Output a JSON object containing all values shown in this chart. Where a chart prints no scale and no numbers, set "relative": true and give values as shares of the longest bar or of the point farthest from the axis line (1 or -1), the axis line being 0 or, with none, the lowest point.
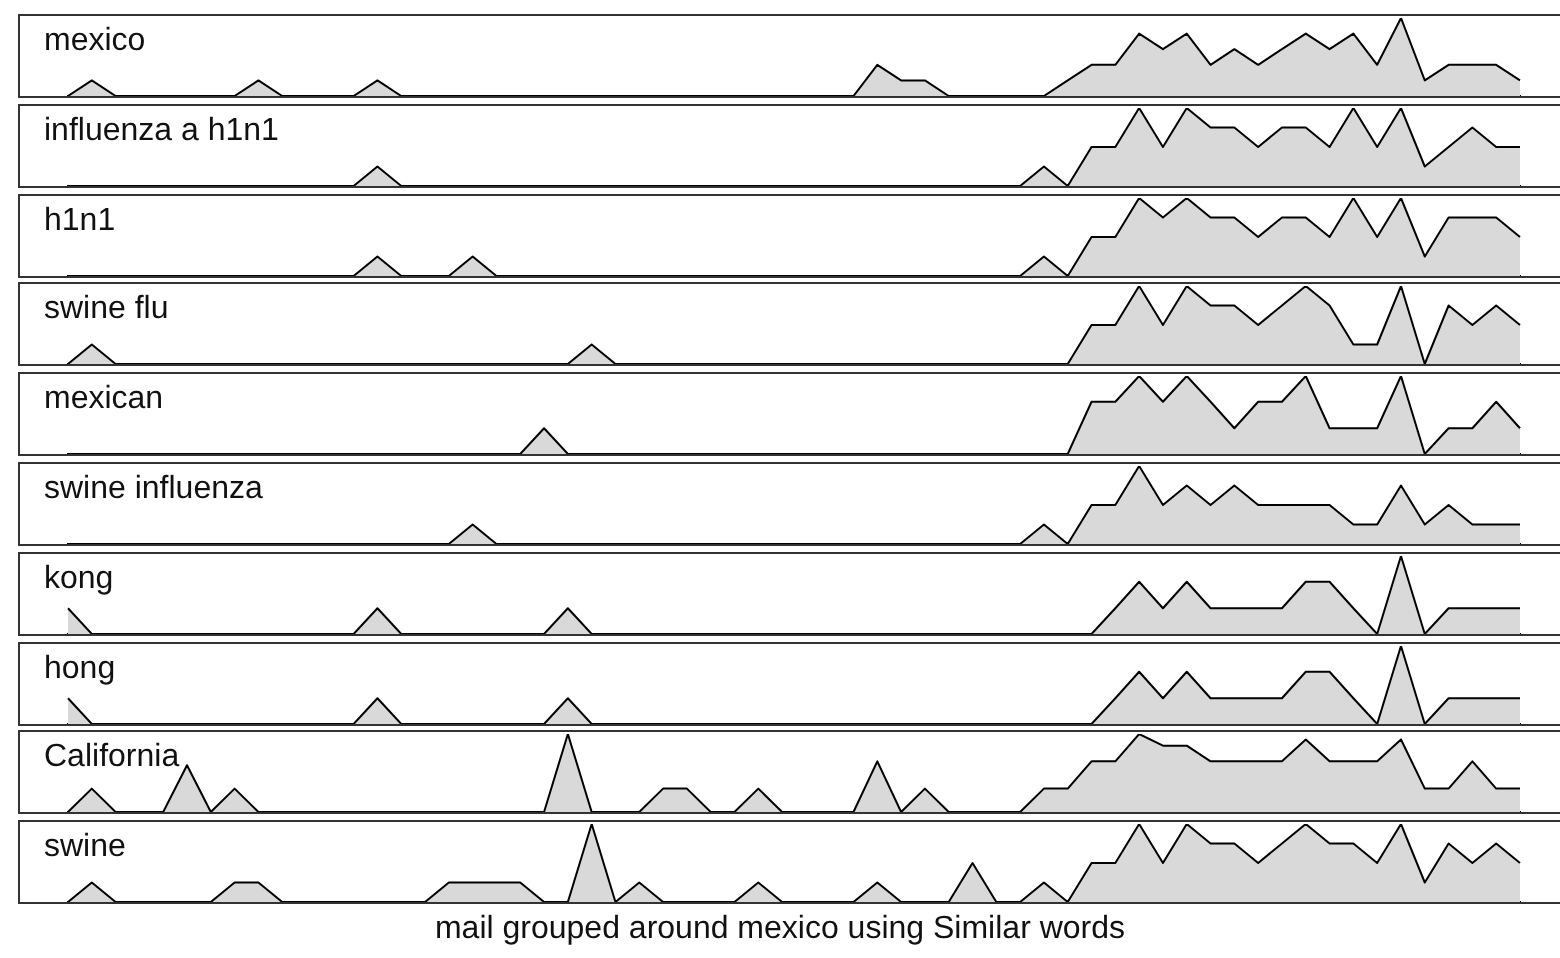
{
  "chart_data": [
    {
      "type": "area",
      "relative": true,
      "categories": [
        null,
        null,
        null,
        null,
        null,
        null,
        null,
        null,
        null,
        null,
        null,
        null,
        null,
        null,
        null,
        null,
        null,
        null,
        null,
        null,
        null,
        null,
        null,
        null,
        null,
        null,
        null,
        null,
        null,
        null,
        null,
        null,
        null,
        null,
        null,
        null,
        null,
        null,
        null,
        null,
        null,
        null,
        null,
        null,
        null,
        null,
        null,
        null,
        null,
        null,
        null,
        null,
        null,
        null,
        null,
        null,
        null,
        null,
        null,
        null,
        null,
        null
      ],
      "series": [
        {
          "name": "mexico",
          "color": "#d9d9d9",
          "values": [
            0,
            0.2,
            0,
            0,
            0,
            0,
            0,
            0,
            0.2,
            0,
            0,
            0,
            0,
            0.2,
            0,
            0,
            0,
            0,
            0,
            0,
            0,
            0,
            0,
            0,
            0,
            0,
            0,
            0,
            0,
            0,
            0,
            0,
            0,
            0,
            0.4,
            0.2,
            0.2,
            0,
            0,
            0,
            0,
            0,
            0.2,
            0.4,
            0.4,
            0.8,
            0.6,
            0.8,
            0.4,
            0.6,
            0.4,
            0.6,
            0.8,
            0.6,
            0.8,
            0.4,
            1,
            0.2,
            0.4,
            0.4,
            0.4,
            0.2
          ]
        }
      ]
    },
    {
      "type": "area",
      "relative": true,
      "categories": [
        null,
        null,
        null,
        null,
        null,
        null,
        null,
        null,
        null,
        null,
        null,
        null,
        null,
        null,
        null,
        null,
        null,
        null,
        null,
        null,
        null,
        null,
        null,
        null,
        null,
        null,
        null,
        null,
        null,
        null,
        null,
        null,
        null,
        null,
        null,
        null,
        null,
        null,
        null,
        null,
        null,
        null,
        null,
        null,
        null,
        null,
        null,
        null,
        null,
        null,
        null,
        null,
        null,
        null,
        null,
        null,
        null,
        null,
        null,
        null,
        null,
        null
      ],
      "series": [
        {
          "name": "influenza a h1n1",
          "color": "#d9d9d9",
          "values": [
            0,
            0,
            0,
            0,
            0,
            0,
            0,
            0,
            0,
            0,
            0,
            0,
            0,
            0.25,
            0,
            0,
            0,
            0,
            0,
            0,
            0,
            0,
            0,
            0,
            0,
            0,
            0,
            0,
            0,
            0,
            0,
            0,
            0,
            0,
            0,
            0,
            0,
            0,
            0,
            0,
            0,
            0.25,
            0,
            0.5,
            0.5,
            1,
            0.5,
            1,
            0.75,
            0.75,
            0.5,
            0.75,
            0.75,
            0.5,
            1,
            0.5,
            1,
            0.25,
            0.5,
            0.75,
            0.5,
            0.5
          ]
        }
      ]
    },
    {
      "type": "area",
      "relative": true,
      "categories": [
        null,
        null,
        null,
        null,
        null,
        null,
        null,
        null,
        null,
        null,
        null,
        null,
        null,
        null,
        null,
        null,
        null,
        null,
        null,
        null,
        null,
        null,
        null,
        null,
        null,
        null,
        null,
        null,
        null,
        null,
        null,
        null,
        null,
        null,
        null,
        null,
        null,
        null,
        null,
        null,
        null,
        null,
        null,
        null,
        null,
        null,
        null,
        null,
        null,
        null,
        null,
        null,
        null,
        null,
        null,
        null,
        null,
        null,
        null,
        null,
        null,
        null
      ],
      "series": [
        {
          "name": "h1n1",
          "color": "#d9d9d9",
          "values": [
            0,
            0,
            0,
            0,
            0,
            0,
            0,
            0,
            0,
            0,
            0,
            0,
            0,
            0.25,
            0,
            0,
            0,
            0.25,
            0,
            0,
            0,
            0,
            0,
            0,
            0,
            0,
            0,
            0,
            0,
            0,
            0,
            0,
            0,
            0,
            0,
            0,
            0,
            0,
            0,
            0,
            0,
            0.25,
            0,
            0.5,
            0.5,
            1,
            0.75,
            1,
            0.75,
            0.75,
            0.5,
            0.75,
            0.75,
            0.5,
            1,
            0.5,
            1,
            0.25,
            0.75,
            0.75,
            0.75,
            0.5
          ]
        }
      ]
    },
    {
      "type": "area",
      "relative": true,
      "categories": [
        null,
        null,
        null,
        null,
        null,
        null,
        null,
        null,
        null,
        null,
        null,
        null,
        null,
        null,
        null,
        null,
        null,
        null,
        null,
        null,
        null,
        null,
        null,
        null,
        null,
        null,
        null,
        null,
        null,
        null,
        null,
        null,
        null,
        null,
        null,
        null,
        null,
        null,
        null,
        null,
        null,
        null,
        null,
        null,
        null,
        null,
        null,
        null,
        null,
        null,
        null,
        null,
        null,
        null,
        null,
        null,
        null,
        null,
        null,
        null,
        null,
        null
      ],
      "series": [
        {
          "name": "swine flu",
          "color": "#d9d9d9",
          "values": [
            0,
            0.25,
            0,
            0,
            0,
            0,
            0,
            0,
            0,
            0,
            0,
            0,
            0,
            0,
            0,
            0,
            0,
            0,
            0,
            0,
            0,
            0,
            0.25,
            0,
            0,
            0,
            0,
            0,
            0,
            0,
            0,
            0,
            0,
            0,
            0,
            0,
            0,
            0,
            0,
            0,
            0,
            0,
            0,
            0.5,
            0.5,
            1,
            0.5,
            1,
            0.75,
            0.75,
            0.5,
            0.75,
            1,
            0.75,
            0.25,
            0.25,
            1,
            0,
            0.75,
            0.5,
            0.75,
            0.5
          ]
        }
      ]
    },
    {
      "type": "area",
      "relative": true,
      "categories": [
        null,
        null,
        null,
        null,
        null,
        null,
        null,
        null,
        null,
        null,
        null,
        null,
        null,
        null,
        null,
        null,
        null,
        null,
        null,
        null,
        null,
        null,
        null,
        null,
        null,
        null,
        null,
        null,
        null,
        null,
        null,
        null,
        null,
        null,
        null,
        null,
        null,
        null,
        null,
        null,
        null,
        null,
        null,
        null,
        null,
        null,
        null,
        null,
        null,
        null,
        null,
        null,
        null,
        null,
        null,
        null,
        null,
        null,
        null,
        null,
        null,
        null
      ],
      "series": [
        {
          "name": "mexican",
          "color": "#d9d9d9",
          "values": [
            0,
            0,
            0,
            0,
            0,
            0,
            0,
            0,
            0,
            0,
            0,
            0,
            0,
            0,
            0,
            0,
            0,
            0,
            0,
            0,
            0.33,
            0,
            0,
            0,
            0,
            0,
            0,
            0,
            0,
            0,
            0,
            0,
            0,
            0,
            0,
            0,
            0,
            0,
            0,
            0,
            0,
            0,
            0,
            0.67,
            0.67,
            1,
            0.67,
            1,
            0.67,
            0.33,
            0.67,
            0.67,
            1,
            0.33,
            0.33,
            0.33,
            1,
            0,
            0.33,
            0.33,
            0.67,
            0.33
          ]
        }
      ]
    },
    {
      "type": "area",
      "relative": true,
      "categories": [
        null,
        null,
        null,
        null,
        null,
        null,
        null,
        null,
        null,
        null,
        null,
        null,
        null,
        null,
        null,
        null,
        null,
        null,
        null,
        null,
        null,
        null,
        null,
        null,
        null,
        null,
        null,
        null,
        null,
        null,
        null,
        null,
        null,
        null,
        null,
        null,
        null,
        null,
        null,
        null,
        null,
        null,
        null,
        null,
        null,
        null,
        null,
        null,
        null,
        null,
        null,
        null,
        null,
        null,
        null,
        null,
        null,
        null,
        null,
        null,
        null,
        null
      ],
      "series": [
        {
          "name": "swine influenza",
          "color": "#d9d9d9",
          "values": [
            0,
            0,
            0,
            0,
            0,
            0,
            0,
            0,
            0,
            0,
            0,
            0,
            0,
            0,
            0,
            0,
            0,
            0.25,
            0,
            0,
            0,
            0,
            0,
            0,
            0,
            0,
            0,
            0,
            0,
            0,
            0,
            0,
            0,
            0,
            0,
            0,
            0,
            0,
            0,
            0,
            0,
            0.25,
            0,
            0.5,
            0.5,
            1,
            0.5,
            0.75,
            0.5,
            0.75,
            0.5,
            0.5,
            0.5,
            0.5,
            0.25,
            0.25,
            0.75,
            0.25,
            0.5,
            0.25,
            0.25,
            0.25
          ]
        }
      ]
    },
    {
      "type": "area",
      "relative": true,
      "categories": [
        null,
        null,
        null,
        null,
        null,
        null,
        null,
        null,
        null,
        null,
        null,
        null,
        null,
        null,
        null,
        null,
        null,
        null,
        null,
        null,
        null,
        null,
        null,
        null,
        null,
        null,
        null,
        null,
        null,
        null,
        null,
        null,
        null,
        null,
        null,
        null,
        null,
        null,
        null,
        null,
        null,
        null,
        null,
        null,
        null,
        null,
        null,
        null,
        null,
        null,
        null,
        null,
        null,
        null,
        null,
        null,
        null,
        null,
        null,
        null,
        null,
        null
      ],
      "series": [
        {
          "name": "kong",
          "color": "#d9d9d9",
          "values": [
            0.33,
            0,
            0,
            0,
            0,
            0,
            0,
            0,
            0,
            0,
            0,
            0,
            0,
            0.33,
            0,
            0,
            0,
            0,
            0,
            0,
            0,
            0.33,
            0,
            0,
            0,
            0,
            0,
            0,
            0,
            0,
            0,
            0,
            0,
            0,
            0,
            0,
            0,
            0,
            0,
            0,
            0,
            0,
            0,
            0,
            0.33,
            0.67,
            0.33,
            0.67,
            0.33,
            0.33,
            0.33,
            0.33,
            0.67,
            0.67,
            0.33,
            0,
            1,
            0,
            0.33,
            0.33,
            0.33,
            0.33
          ]
        }
      ]
    },
    {
      "type": "area",
      "relative": true,
      "categories": [
        null,
        null,
        null,
        null,
        null,
        null,
        null,
        null,
        null,
        null,
        null,
        null,
        null,
        null,
        null,
        null,
        null,
        null,
        null,
        null,
        null,
        null,
        null,
        null,
        null,
        null,
        null,
        null,
        null,
        null,
        null,
        null,
        null,
        null,
        null,
        null,
        null,
        null,
        null,
        null,
        null,
        null,
        null,
        null,
        null,
        null,
        null,
        null,
        null,
        null,
        null,
        null,
        null,
        null,
        null,
        null,
        null,
        null,
        null,
        null,
        null,
        null
      ],
      "series": [
        {
          "name": "hong",
          "color": "#d9d9d9",
          "values": [
            0.33,
            0,
            0,
            0,
            0,
            0,
            0,
            0,
            0,
            0,
            0,
            0,
            0,
            0.33,
            0,
            0,
            0,
            0,
            0,
            0,
            0,
            0.33,
            0,
            0,
            0,
            0,
            0,
            0,
            0,
            0,
            0,
            0,
            0,
            0,
            0,
            0,
            0,
            0,
            0,
            0,
            0,
            0,
            0,
            0,
            0.33,
            0.67,
            0.33,
            0.67,
            0.33,
            0.33,
            0.33,
            0.33,
            0.67,
            0.67,
            0.33,
            0,
            1,
            0,
            0.33,
            0.33,
            0.33,
            0.33
          ]
        }
      ]
    },
    {
      "type": "area",
      "relative": true,
      "categories": [
        null,
        null,
        null,
        null,
        null,
        null,
        null,
        null,
        null,
        null,
        null,
        null,
        null,
        null,
        null,
        null,
        null,
        null,
        null,
        null,
        null,
        null,
        null,
        null,
        null,
        null,
        null,
        null,
        null,
        null,
        null,
        null,
        null,
        null,
        null,
        null,
        null,
        null,
        null,
        null,
        null,
        null,
        null,
        null,
        null,
        null,
        null,
        null,
        null,
        null,
        null,
        null,
        null,
        null,
        null,
        null,
        null,
        null,
        null,
        null,
        null,
        null
      ],
      "series": [
        {
          "name": "California",
          "color": "#d9d9d9",
          "values": [
            0,
            0.3,
            0,
            0,
            0,
            0.6,
            0,
            0.3,
            0,
            0,
            0,
            0,
            0,
            0,
            0,
            0,
            0,
            0,
            0,
            0,
            0,
            1,
            0,
            0,
            0,
            0.3,
            0.3,
            0,
            0,
            0.3,
            0,
            0,
            0,
            0,
            0.65,
            0,
            0.3,
            0,
            0,
            0,
            0,
            0.3,
            0.3,
            0.65,
            0.65,
            1,
            0.85,
            0.85,
            0.65,
            0.65,
            0.65,
            0.65,
            0.93,
            0.65,
            0.65,
            0.65,
            0.93,
            0.3,
            0.3,
            0.65,
            0.3,
            0.3
          ]
        }
      ]
    },
    {
      "type": "area",
      "relative": true,
      "categories": [
        null,
        null,
        null,
        null,
        null,
        null,
        null,
        null,
        null,
        null,
        null,
        null,
        null,
        null,
        null,
        null,
        null,
        null,
        null,
        null,
        null,
        null,
        null,
        null,
        null,
        null,
        null,
        null,
        null,
        null,
        null,
        null,
        null,
        null,
        null,
        null,
        null,
        null,
        null,
        null,
        null,
        null,
        null,
        null,
        null,
        null,
        null,
        null,
        null,
        null,
        null,
        null,
        null,
        null,
        null,
        null,
        null,
        null,
        null,
        null,
        null,
        null
      ],
      "series": [
        {
          "name": "swine",
          "color": "#d9d9d9",
          "values": [
            0,
            0.25,
            0,
            0,
            0,
            0,
            0,
            0.25,
            0.25,
            0,
            0,
            0,
            0,
            0,
            0,
            0,
            0.25,
            0.25,
            0.25,
            0.25,
            0,
            0,
            1,
            0,
            0.25,
            0,
            0,
            0,
            0,
            0.25,
            0,
            0,
            0,
            0,
            0.25,
            0,
            0,
            0,
            0.5,
            0,
            0,
            0.25,
            0,
            0.5,
            0.5,
            1,
            0.5,
            1,
            0.75,
            0.75,
            0.5,
            0.75,
            1,
            0.75,
            0.75,
            0.5,
            1,
            0.25,
            0.75,
            0.5,
            0.75,
            0.5
          ]
        }
      ],
      "annotations": [
        "mail grouped around mexico using Similar words"
      ]
    }
  ]
}
